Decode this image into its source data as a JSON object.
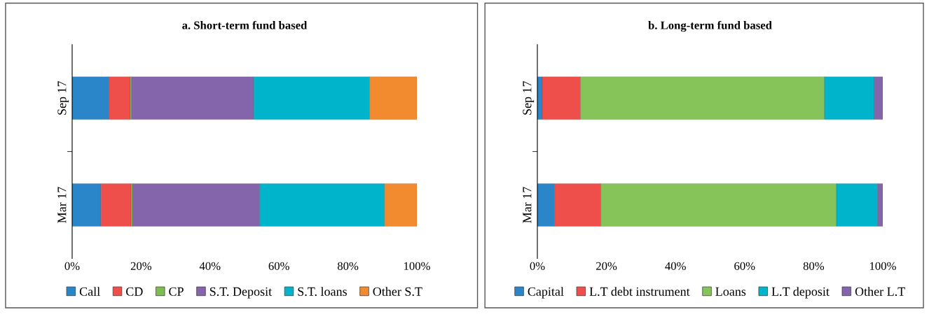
{
  "chart_data": [
    {
      "type": "bar",
      "title": "a. Short-term fund based",
      "orientation": "horizontal",
      "stacked": true,
      "categories": [
        "Sep 17",
        "Mar 17"
      ],
      "xlim": [
        0,
        100
      ],
      "xticks": [
        {
          "value": 0,
          "label": "0%"
        },
        {
          "value": 20,
          "label": "20%"
        },
        {
          "value": 40,
          "label": "40%"
        },
        {
          "value": 60,
          "label": "60%"
        },
        {
          "value": 80,
          "label": "80%"
        },
        {
          "value": 100,
          "label": "100%"
        }
      ],
      "legend": "bottom",
      "grid": false,
      "series": [
        {
          "name": "Call",
          "color": "#2a86c8",
          "values": [
            10.7,
            8.4
          ]
        },
        {
          "name": "CD",
          "color": "#ef4f4a",
          "values": [
            6.2,
            8.7
          ]
        },
        {
          "name": "CP",
          "color": "#7cbd4f",
          "values": [
            0.3,
            0.4
          ]
        },
        {
          "name": "S.T. Deposit",
          "color": "#8464aa",
          "values": [
            35.5,
            36.9
          ]
        },
        {
          "name": "S.T. loans",
          "color": "#00b4cb",
          "values": [
            33.6,
            36.2
          ]
        },
        {
          "name": "Other S.T",
          "color": "#f28b2f",
          "values": [
            13.7,
            9.4
          ]
        }
      ]
    },
    {
      "type": "bar",
      "title": "b. Long-term fund based",
      "orientation": "horizontal",
      "stacked": true,
      "categories": [
        "Sep 17",
        "Mar 17"
      ],
      "xlim": [
        0,
        100
      ],
      "xticks": [
        {
          "value": 0,
          "label": "0%"
        },
        {
          "value": 20,
          "label": "20%"
        },
        {
          "value": 40,
          "label": "40%"
        },
        {
          "value": 60,
          "label": "60%"
        },
        {
          "value": 80,
          "label": "80%"
        },
        {
          "value": 100,
          "label": "100%"
        }
      ],
      "legend": "bottom",
      "grid": false,
      "series": [
        {
          "name": "Capital",
          "color": "#2a86c8",
          "values": [
            1.4,
            5.0
          ]
        },
        {
          "name": "L.T debt instrument",
          "color": "#ef4f4a",
          "values": [
            11.1,
            13.4
          ]
        },
        {
          "name": "Loans",
          "color": "#86c45a",
          "values": [
            70.6,
            68.2
          ]
        },
        {
          "name": "L.T deposit",
          "color": "#00b4cb",
          "values": [
            14.5,
            11.9
          ]
        },
        {
          "name": "Other L.T",
          "color": "#8464aa",
          "values": [
            2.4,
            1.5
          ]
        }
      ]
    }
  ]
}
